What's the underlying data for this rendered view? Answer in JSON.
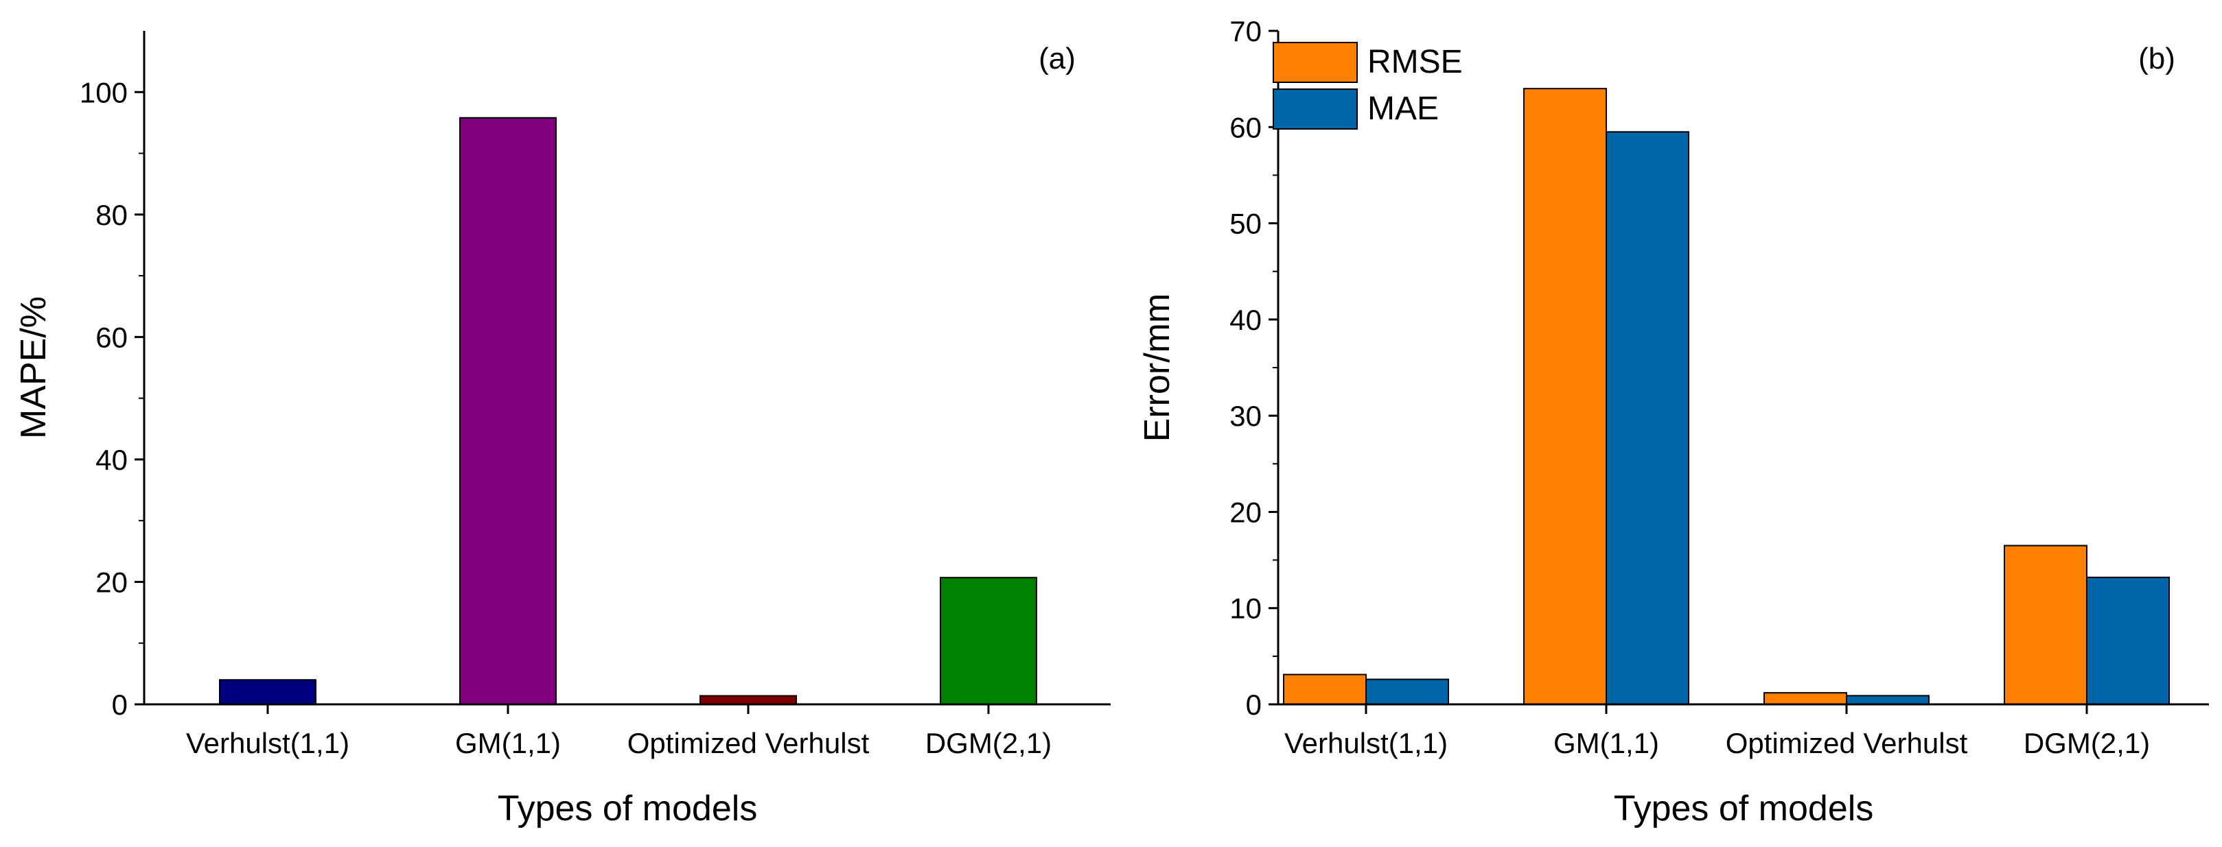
{
  "chart_data": [
    {
      "type": "bar",
      "panel_label": "(a)",
      "categories": [
        "Verhulst(1,1)",
        "GM(1,1)",
        "Optimized Verhulst",
        "DGM(2,1)"
      ],
      "values": [
        4.0,
        95.8,
        1.4,
        20.7
      ],
      "bar_colors": [
        "#000080",
        "#800080",
        "#800000",
        "#008000"
      ],
      "xlabel": "Types of models",
      "ylabel": "MAPE/%",
      "ylim": [
        0,
        110
      ],
      "yticks": [
        0,
        20,
        40,
        60,
        80,
        100
      ],
      "grid": false
    },
    {
      "type": "bar",
      "panel_label": "(b)",
      "categories": [
        "Verhulst(1,1)",
        "GM(1,1)",
        "Optimized Verhulst",
        "DGM(2,1)"
      ],
      "series": [
        {
          "name": "RMSE",
          "color": "#FF8000",
          "values": [
            3.1,
            64.0,
            1.2,
            16.5
          ]
        },
        {
          "name": "MAE",
          "color": "#0066AA",
          "values": [
            2.6,
            59.5,
            0.9,
            13.2
          ]
        }
      ],
      "xlabel": "Types of models",
      "ylabel": "Error/mm",
      "ylim": [
        0,
        70
      ],
      "yticks": [
        0,
        10,
        20,
        30,
        40,
        50,
        60,
        70
      ],
      "legend_position": "top-left",
      "grid": false
    }
  ]
}
